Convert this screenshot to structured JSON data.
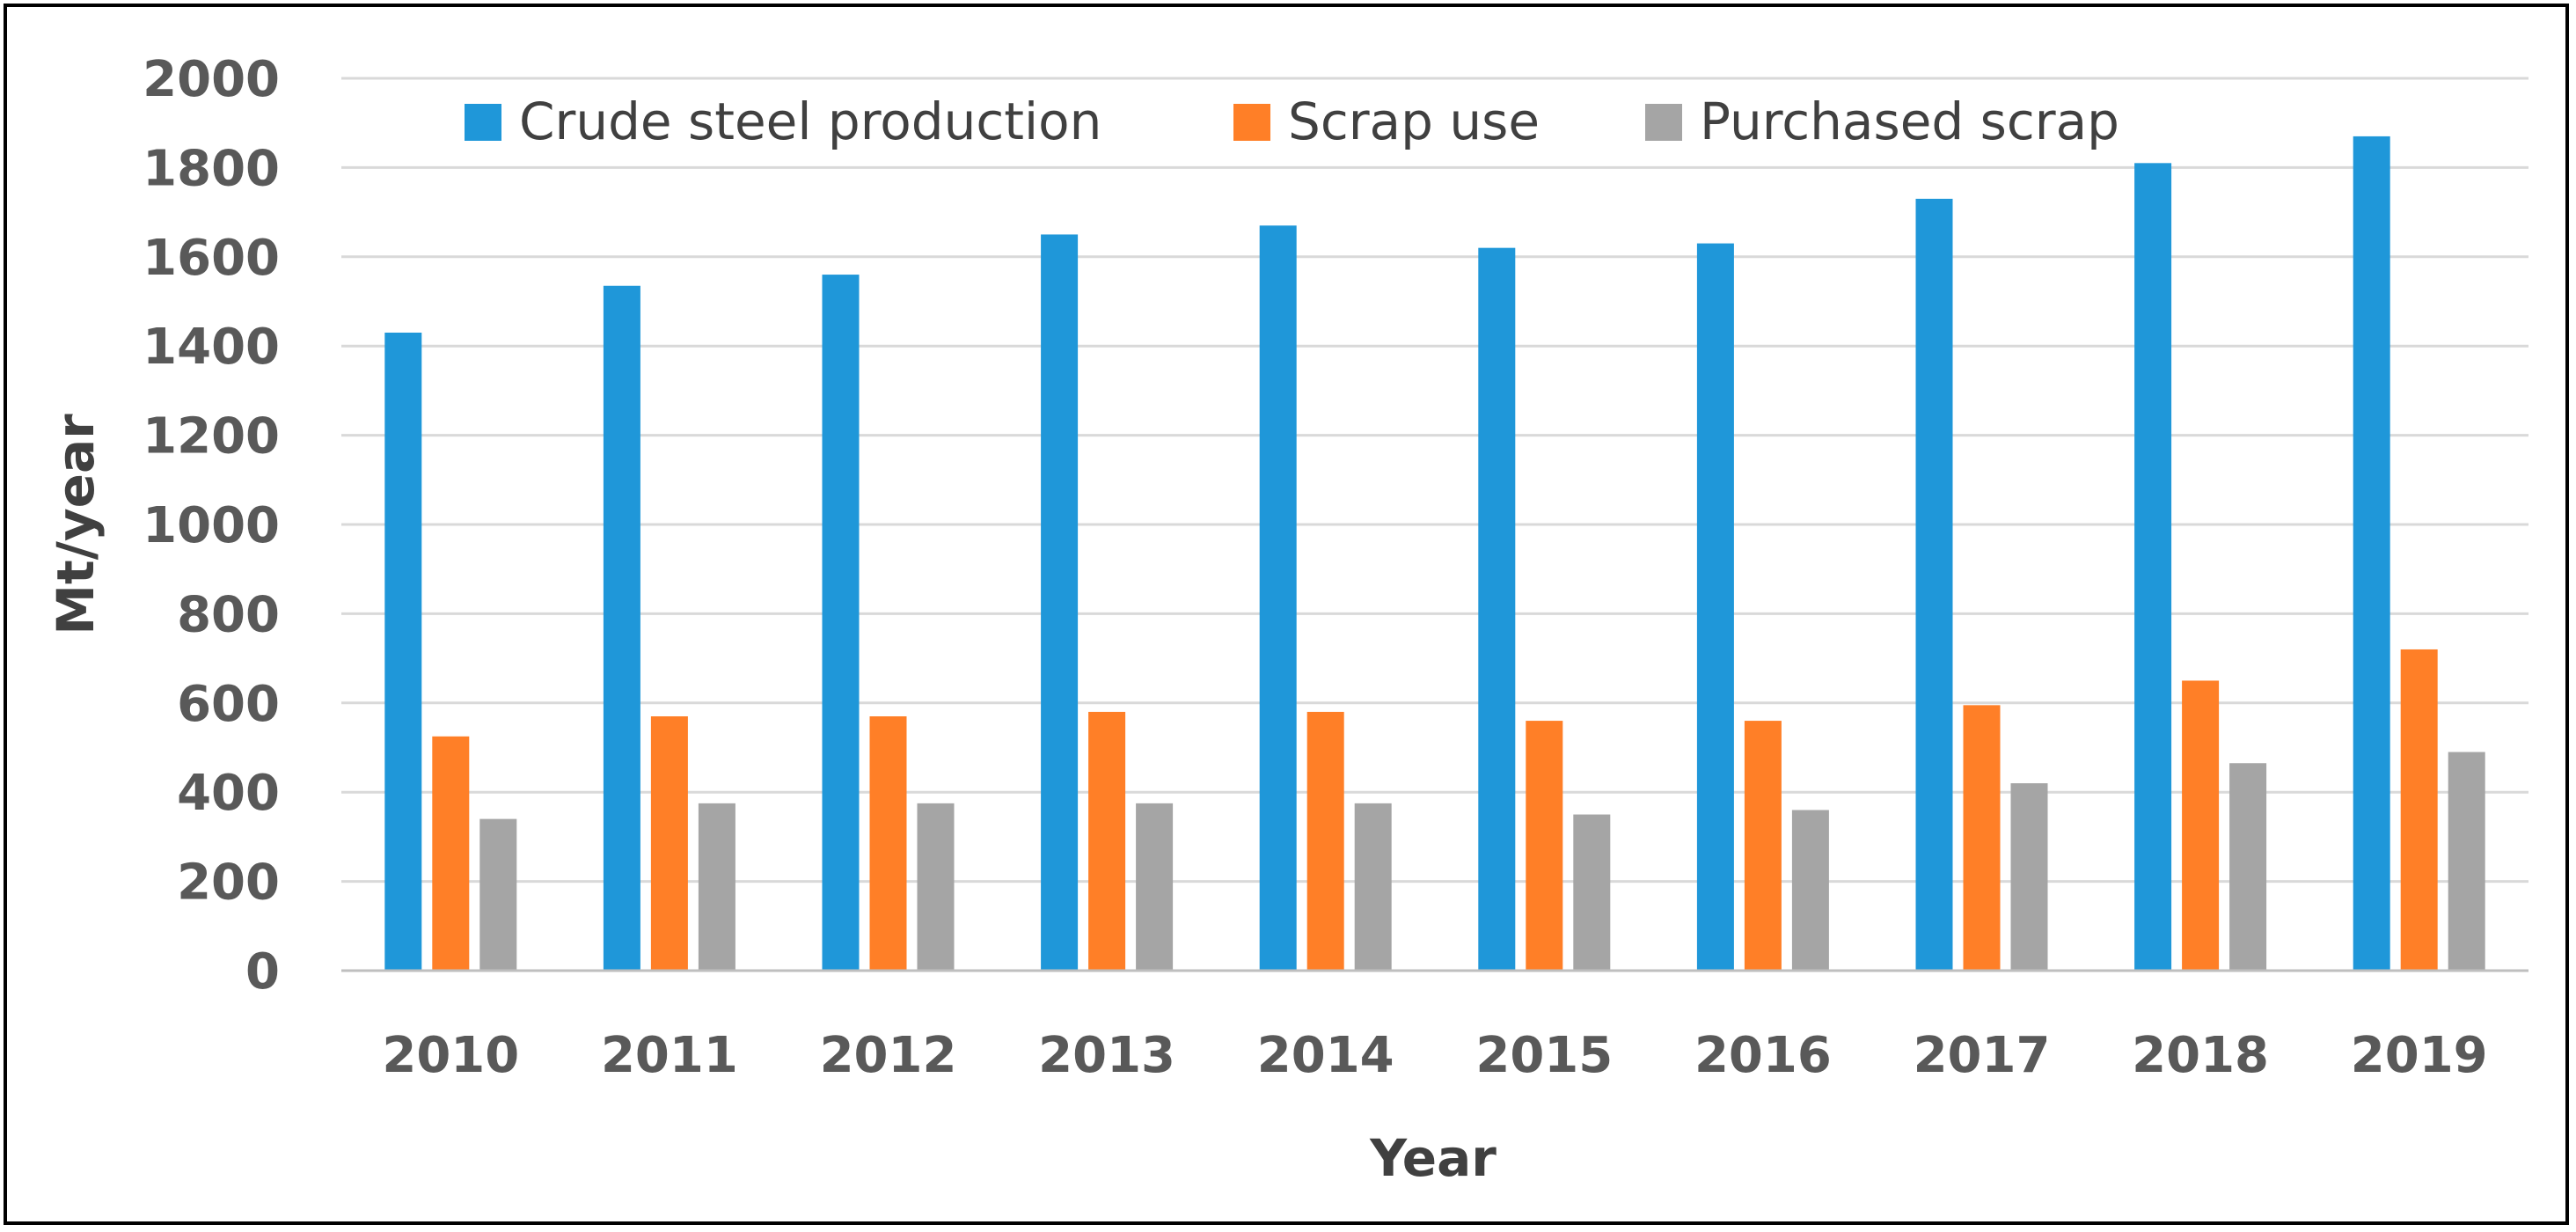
{
  "chart_data": {
    "type": "bar",
    "title": "",
    "xlabel": "Year",
    "ylabel": "Mt/year",
    "ylim": [
      0,
      2000
    ],
    "yticks": [
      0,
      200,
      400,
      600,
      800,
      1000,
      1200,
      1400,
      1600,
      1800,
      2000
    ],
    "grid": true,
    "legend_position": "top",
    "categories": [
      "2010",
      "2011",
      "2012",
      "2013",
      "2014",
      "2015",
      "2016",
      "2017",
      "2018",
      "2019"
    ],
    "series": [
      {
        "name": "Crude steel production",
        "color": "#1f97d9",
        "values": [
          1430,
          1535,
          1560,
          1650,
          1670,
          1620,
          1630,
          1730,
          1810,
          1870
        ]
      },
      {
        "name": "Scrap use",
        "color": "#ff7f27",
        "values": [
          525,
          570,
          570,
          580,
          580,
          560,
          560,
          595,
          650,
          720
        ]
      },
      {
        "name": "Purchased scrap",
        "color": "#a5a5a5",
        "values": [
          340,
          375,
          375,
          375,
          375,
          350,
          360,
          420,
          465,
          490
        ]
      }
    ]
  }
}
